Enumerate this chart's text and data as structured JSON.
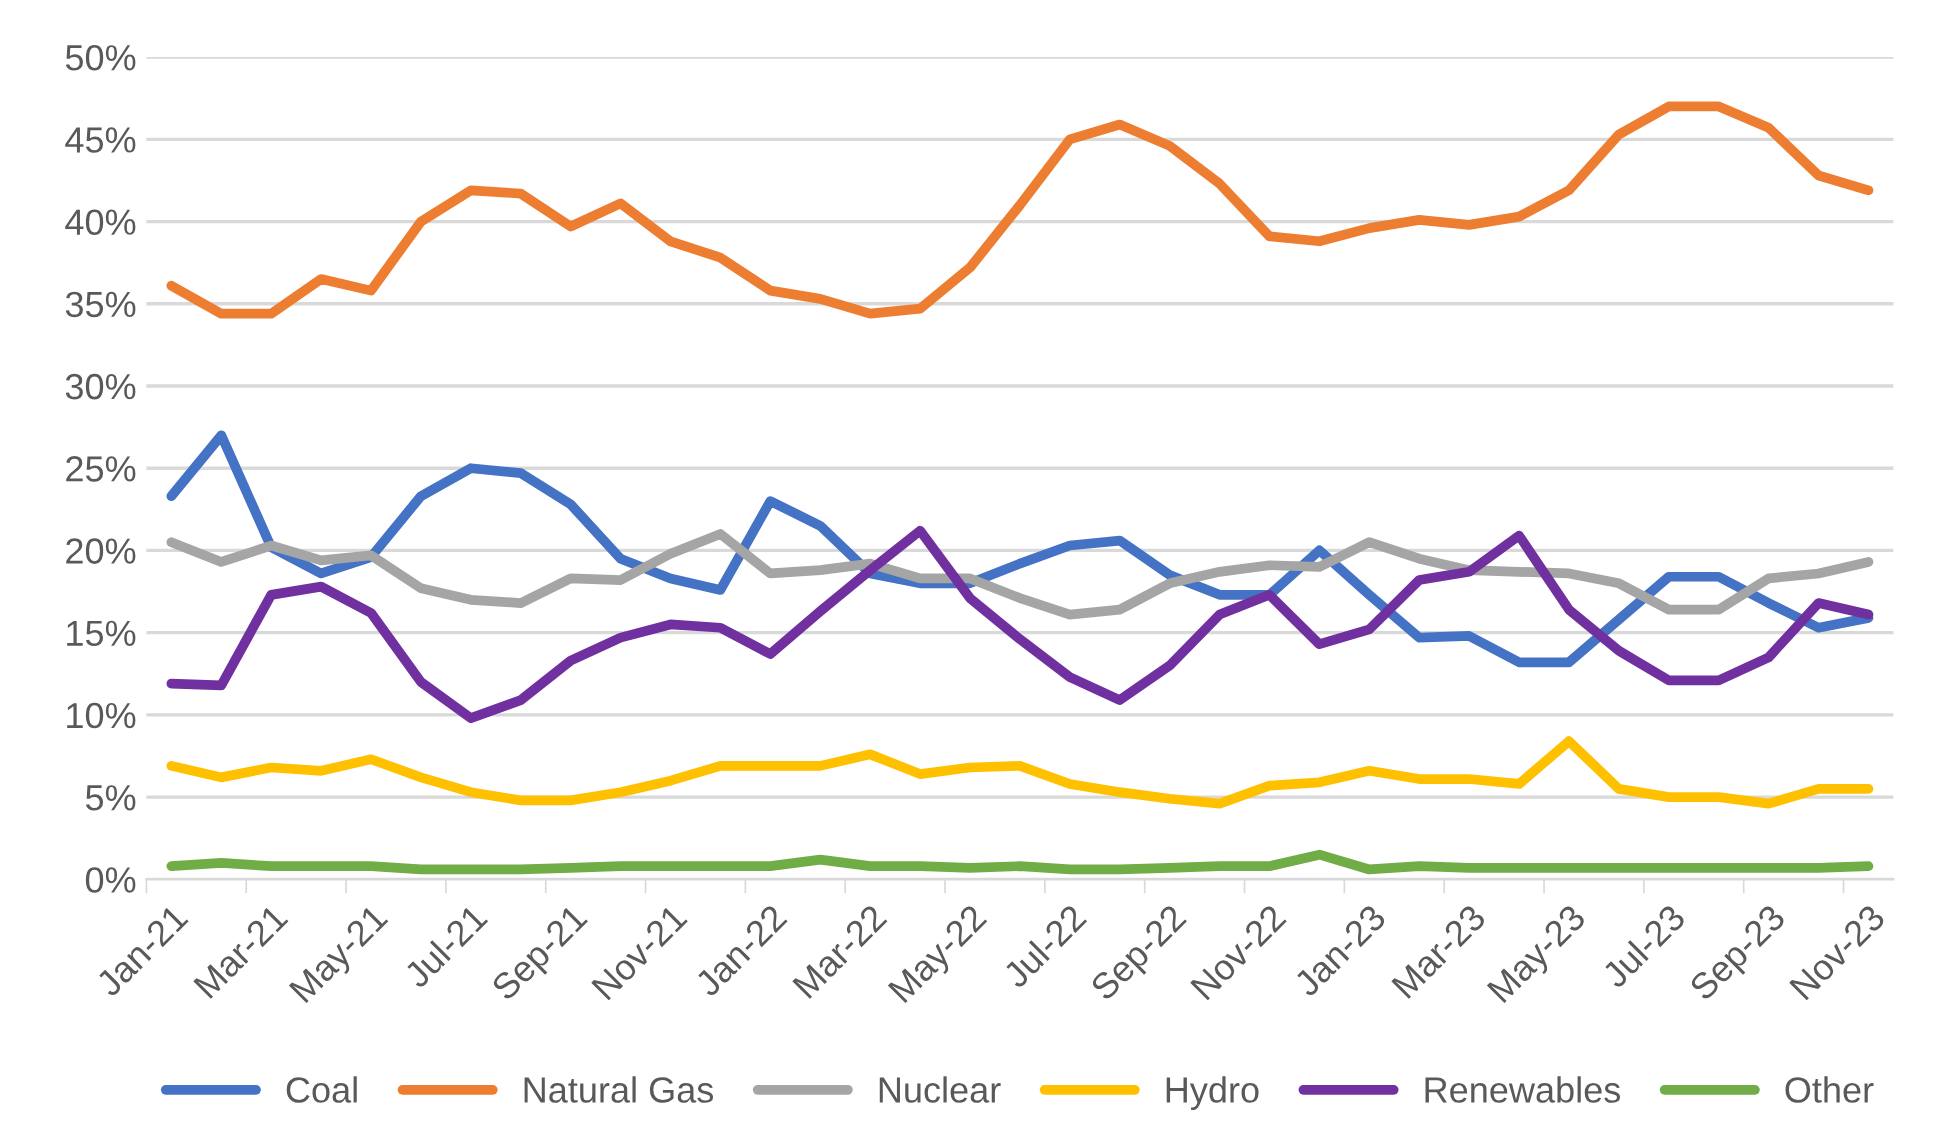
{
  "chart_data": {
    "type": "line",
    "categories": [
      "Jan-21",
      null,
      "Mar-21",
      null,
      "May-21",
      null,
      "Jul-21",
      null,
      "Sep-21",
      null,
      "Nov-21",
      null,
      "Jan-22",
      null,
      "Mar-22",
      null,
      "May-22",
      null,
      "Jul-22",
      null,
      "Sep-22",
      null,
      "Nov-22",
      null,
      "Jan-23",
      null,
      "Mar-23",
      null,
      "May-23",
      null,
      "Jul-23",
      null,
      "Sep-23",
      null,
      "Nov-23"
    ],
    "series": [
      {
        "name": "Coal",
        "color": "#4472c4",
        "values": [
          23.3,
          27.0,
          20.2,
          18.6,
          19.6,
          23.3,
          25.0,
          24.7,
          22.8,
          19.5,
          18.3,
          17.6,
          23.0,
          21.5,
          18.6,
          18.0,
          18.0,
          19.2,
          20.3,
          20.6,
          18.5,
          17.3,
          17.3,
          20.0,
          17.3,
          14.7,
          14.8,
          13.2,
          13.2,
          15.8,
          18.4,
          18.4,
          16.8,
          15.3,
          15.9
        ]
      },
      {
        "name": "Natural Gas",
        "color": "#ed7d31",
        "values": [
          36.1,
          34.4,
          34.4,
          36.5,
          35.8,
          40.0,
          41.9,
          41.7,
          39.7,
          41.1,
          38.8,
          37.8,
          35.8,
          35.3,
          34.4,
          34.7,
          37.2,
          41.0,
          45.0,
          45.9,
          44.6,
          42.3,
          39.1,
          38.8,
          39.6,
          40.1,
          39.8,
          40.3,
          41.9,
          45.3,
          47.0,
          47.0,
          45.7,
          42.8,
          41.9
        ]
      },
      {
        "name": "Nuclear",
        "color": "#a5a5a5",
        "values": [
          20.5,
          19.3,
          20.3,
          19.4,
          19.7,
          17.7,
          17.0,
          16.8,
          18.3,
          18.2,
          19.8,
          21.0,
          18.6,
          18.8,
          19.2,
          18.3,
          18.3,
          17.1,
          16.1,
          16.4,
          18.0,
          18.7,
          19.1,
          19.0,
          20.5,
          19.5,
          18.8,
          18.7,
          18.6,
          18.0,
          16.4,
          16.4,
          18.3,
          18.6,
          19.3
        ]
      },
      {
        "name": "Hydro",
        "color": "#ffc000",
        "values": [
          6.9,
          6.2,
          6.8,
          6.6,
          7.3,
          6.2,
          5.3,
          4.8,
          4.8,
          5.3,
          6.0,
          6.9,
          6.9,
          6.9,
          7.6,
          6.4,
          6.8,
          6.9,
          5.8,
          5.3,
          4.9,
          4.6,
          5.7,
          5.9,
          6.6,
          6.1,
          6.1,
          5.8,
          8.4,
          5.5,
          5.0,
          5.0,
          4.6,
          5.5,
          5.5
        ]
      },
      {
        "name": "Renewables",
        "color": "#7030a0",
        "values": [
          11.9,
          11.8,
          17.3,
          17.8,
          16.2,
          12.0,
          9.8,
          10.9,
          13.3,
          14.7,
          15.5,
          15.3,
          13.7,
          16.3,
          18.8,
          21.2,
          17.1,
          14.6,
          12.3,
          10.9,
          13.0,
          16.1,
          17.3,
          14.3,
          15.2,
          18.2,
          18.7,
          20.9,
          16.4,
          13.9,
          12.1,
          12.1,
          13.5,
          16.8,
          16.1
        ]
      },
      {
        "name": "Other",
        "color": "#70ad47",
        "values": [
          0.8,
          1.0,
          0.8,
          0.8,
          0.8,
          0.6,
          0.6,
          0.6,
          0.7,
          0.8,
          0.8,
          0.8,
          0.8,
          1.2,
          0.8,
          0.8,
          0.7,
          0.8,
          0.6,
          0.6,
          0.7,
          0.8,
          0.8,
          1.5,
          0.6,
          0.8,
          0.7,
          0.7,
          0.7,
          0.7,
          0.7,
          0.7,
          0.7,
          0.7,
          0.8
        ]
      }
    ],
    "ylim": [
      0,
      50
    ],
    "yticks": [
      {
        "value": 0,
        "label": "0%"
      },
      {
        "value": 5,
        "label": "5%"
      },
      {
        "value": 10,
        "label": "10%"
      },
      {
        "value": 15,
        "label": "15%"
      },
      {
        "value": 20,
        "label": "20%"
      },
      {
        "value": 25,
        "label": "25%"
      },
      {
        "value": 30,
        "label": "30%"
      },
      {
        "value": 35,
        "label": "35%"
      },
      {
        "value": 40,
        "label": "40%"
      },
      {
        "value": 45,
        "label": "45%"
      },
      {
        "value": 50,
        "label": "50%"
      }
    ],
    "grid": "y",
    "legend": "bottom",
    "marker": "none",
    "line_style": "solid"
  }
}
